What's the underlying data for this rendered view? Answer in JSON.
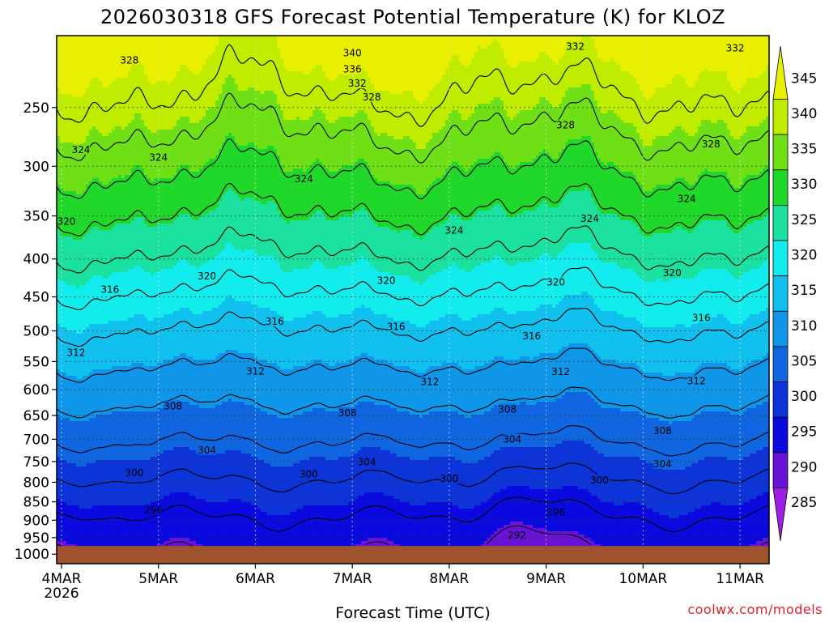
{
  "chart_data": {
    "type": "heatmap",
    "title": "2026030318 GFS Forecast Potential Temperature (K) for KLOZ",
    "xlabel": "Forecast Time (UTC)",
    "ylabel": "",
    "credit": "coolwx.com/models",
    "x_ticks": [
      {
        "label": "4MAR",
        "sublabel": "2026",
        "day": 0
      },
      {
        "label": "5MAR",
        "day": 1
      },
      {
        "label": "6MAR",
        "day": 2
      },
      {
        "label": "7MAR",
        "day": 3
      },
      {
        "label": "8MAR",
        "day": 4
      },
      {
        "label": "9MAR",
        "day": 5
      },
      {
        "label": "10MAR",
        "day": 6
      },
      {
        "label": "11MAR",
        "day": 7
      }
    ],
    "xlim": [
      -0.05,
      7.3
    ],
    "y_ticks": [
      250,
      300,
      350,
      400,
      450,
      500,
      550,
      600,
      650,
      700,
      750,
      800,
      850,
      900,
      950,
      1000
    ],
    "ylim": [
      200,
      1030
    ],
    "y_scale": "log",
    "surface_pressure": 975,
    "colorbar": {
      "levels": [
        345,
        340,
        335,
        330,
        325,
        320,
        315,
        310,
        305,
        300,
        295,
        290,
        285
      ],
      "colors": [
        "#e8f000",
        "#c0ec00",
        "#6fe015",
        "#1fd82a",
        "#1ae0a0",
        "#12ecec",
        "#10c0ee",
        "#1096e8",
        "#1066e0",
        "#0c34d8",
        "#0a0ae0",
        "#6a12d8",
        "#9e1ee6"
      ],
      "min": 282.5,
      "max": 347.5
    },
    "contour_levels": [
      292,
      296,
      300,
      304,
      308,
      312,
      316,
      320,
      324,
      328,
      332,
      336,
      340
    ],
    "contour_labels": [
      {
        "text": "340",
        "day": 3.0,
        "p": 211
      },
      {
        "text": "336",
        "day": 3.0,
        "p": 222
      },
      {
        "text": "332",
        "day": 3.05,
        "p": 232
      },
      {
        "text": "332",
        "day": 5.3,
        "p": 207
      },
      {
        "text": "332",
        "day": 6.95,
        "p": 208
      },
      {
        "text": "328",
        "day": 0.7,
        "p": 216
      },
      {
        "text": "328",
        "day": 3.2,
        "p": 242
      },
      {
        "text": "328",
        "day": 5.2,
        "p": 264
      },
      {
        "text": "328",
        "day": 6.7,
        "p": 280
      },
      {
        "text": "324",
        "day": 0.2,
        "p": 285
      },
      {
        "text": "324",
        "day": 1.0,
        "p": 292
      },
      {
        "text": "324",
        "day": 2.5,
        "p": 312
      },
      {
        "text": "324",
        "day": 4.05,
        "p": 366
      },
      {
        "text": "324",
        "day": 5.45,
        "p": 353
      },
      {
        "text": "324",
        "day": 6.45,
        "p": 332
      },
      {
        "text": "320",
        "day": 0.05,
        "p": 356
      },
      {
        "text": "320",
        "day": 1.5,
        "p": 422
      },
      {
        "text": "320",
        "day": 3.35,
        "p": 428
      },
      {
        "text": "320",
        "day": 5.1,
        "p": 430
      },
      {
        "text": "320",
        "day": 6.3,
        "p": 418
      },
      {
        "text": "316",
        "day": 0.5,
        "p": 440
      },
      {
        "text": "316",
        "day": 2.2,
        "p": 486
      },
      {
        "text": "316",
        "day": 3.45,
        "p": 494
      },
      {
        "text": "316",
        "day": 4.85,
        "p": 508
      },
      {
        "text": "316",
        "day": 6.6,
        "p": 480
      },
      {
        "text": "312",
        "day": 0.15,
        "p": 535
      },
      {
        "text": "312",
        "day": 2.0,
        "p": 567
      },
      {
        "text": "312",
        "day": 3.8,
        "p": 586
      },
      {
        "text": "312",
        "day": 5.15,
        "p": 568
      },
      {
        "text": "312",
        "day": 6.55,
        "p": 584
      },
      {
        "text": "308",
        "day": 1.15,
        "p": 632
      },
      {
        "text": "308",
        "day": 2.95,
        "p": 645
      },
      {
        "text": "308",
        "day": 4.6,
        "p": 638
      },
      {
        "text": "308",
        "day": 6.2,
        "p": 682
      },
      {
        "text": "304",
        "day": 1.5,
        "p": 724
      },
      {
        "text": "304",
        "day": 3.15,
        "p": 751
      },
      {
        "text": "304",
        "day": 4.65,
        "p": 700
      },
      {
        "text": "304",
        "day": 6.2,
        "p": 756
      },
      {
        "text": "300",
        "day": 0.75,
        "p": 777
      },
      {
        "text": "300",
        "day": 2.55,
        "p": 780
      },
      {
        "text": "300",
        "day": 4.0,
        "p": 791
      },
      {
        "text": "300",
        "day": 5.55,
        "p": 795
      },
      {
        "text": "296",
        "day": 0.95,
        "p": 872
      },
      {
        "text": "296",
        "day": 5.1,
        "p": 878
      },
      {
        "text": "292",
        "day": 4.7,
        "p": 943
      }
    ]
  }
}
